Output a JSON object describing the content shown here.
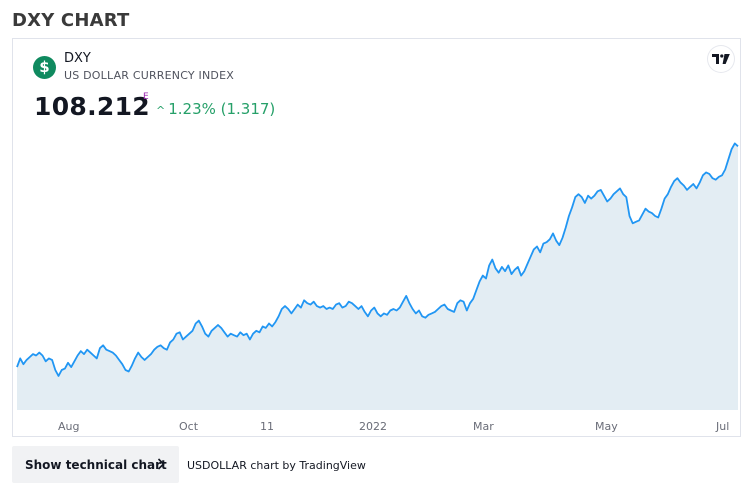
{
  "page": {
    "title": "DXY CHART"
  },
  "symbol": {
    "badge": "$",
    "ticker": "DXY",
    "description": "US DOLLAR CURRENCY INDEX",
    "price": "108.212",
    "price_flag": "E",
    "change_text": "1.23% (1.317)",
    "change_icon": "caret-up-icon",
    "logo_icon": "tradingview-logo-icon"
  },
  "colors": {
    "line": "#2196f3",
    "area": "#e3edf3",
    "positive": "#26a069",
    "badge": "#0f8a5f"
  },
  "chart_data": {
    "type": "area",
    "x_tick_labels": [
      "Aug",
      "Oct",
      "11",
      "2022",
      "Mar",
      "May",
      "Jul"
    ],
    "y_visible": false,
    "grid": false,
    "series": [
      {
        "values": [
          91.95,
          92.55,
          92.15,
          92.45,
          92.65,
          92.85,
          92.75,
          92.95,
          92.75,
          92.35,
          92.55,
          92.45,
          91.75,
          91.35,
          91.75,
          91.85,
          92.25,
          91.95,
          92.35,
          92.75,
          93.05,
          92.85,
          93.15,
          92.95,
          92.75,
          92.55,
          93.25,
          93.45,
          93.15,
          93.05,
          92.95,
          92.75,
          92.45,
          92.15,
          91.75,
          91.65,
          92.05,
          92.55,
          92.95,
          92.65,
          92.45,
          92.65,
          92.85,
          93.15,
          93.35,
          93.45,
          93.25,
          93.15,
          93.65,
          93.85,
          94.25,
          94.35,
          93.85,
          94.05,
          94.25,
          94.45,
          94.95,
          95.15,
          94.75,
          94.25,
          94.05,
          94.45,
          94.65,
          94.85,
          94.65,
          94.35,
          94.05,
          94.25,
          94.15,
          94.05,
          94.35,
          94.15,
          94.25,
          93.85,
          94.25,
          94.45,
          94.35,
          94.75,
          94.65,
          94.95,
          94.75,
          95.05,
          95.45,
          95.95,
          96.15,
          95.95,
          95.65,
          95.95,
          96.25,
          96.05,
          96.55,
          96.35,
          96.25,
          96.45,
          96.15,
          96.05,
          96.15,
          95.95,
          96.05,
          95.95,
          96.25,
          96.35,
          96.05,
          96.15,
          96.45,
          96.35,
          96.15,
          95.95,
          96.15,
          95.75,
          95.45,
          95.85,
          96.05,
          95.65,
          95.45,
          95.65,
          95.55,
          95.85,
          95.95,
          95.85,
          96.05,
          96.45,
          96.85,
          96.35,
          95.95,
          95.65,
          95.85,
          95.45,
          95.35,
          95.55,
          95.65,
          95.75,
          95.95,
          96.15,
          96.25,
          95.95,
          95.85,
          95.75,
          96.35,
          96.55,
          96.45,
          95.85,
          96.35,
          96.65,
          97.25,
          97.85,
          98.25,
          98.05,
          98.95,
          99.35,
          98.75,
          98.45,
          98.85,
          98.55,
          98.95,
          98.35,
          98.65,
          98.85,
          98.25,
          98.55,
          99.05,
          99.55,
          100.05,
          100.25,
          99.85,
          100.45,
          100.55,
          100.75,
          101.15,
          100.65,
          100.35,
          100.85,
          101.55,
          102.35,
          102.95,
          103.65,
          103.85,
          103.65,
          103.25,
          103.75,
          103.55,
          103.75,
          104.05,
          104.15,
          103.75,
          103.35,
          103.55,
          103.85,
          104.05,
          104.25,
          103.85,
          103.65,
          102.35,
          101.85,
          101.95,
          102.05,
          102.45,
          102.85,
          102.65,
          102.55,
          102.35,
          102.25,
          102.85,
          103.55,
          103.85,
          104.35,
          104.75,
          104.95,
          104.65,
          104.45,
          104.15,
          104.35,
          104.55,
          104.25,
          104.65,
          105.15,
          105.35,
          105.25,
          104.95,
          104.85,
          105.05,
          105.15,
          105.55,
          106.25,
          106.95,
          107.35,
          107.15
        ]
      }
    ]
  },
  "footer": {
    "button_label": "Show technical chart",
    "credit": "USDOLLAR chart by TradingView"
  }
}
